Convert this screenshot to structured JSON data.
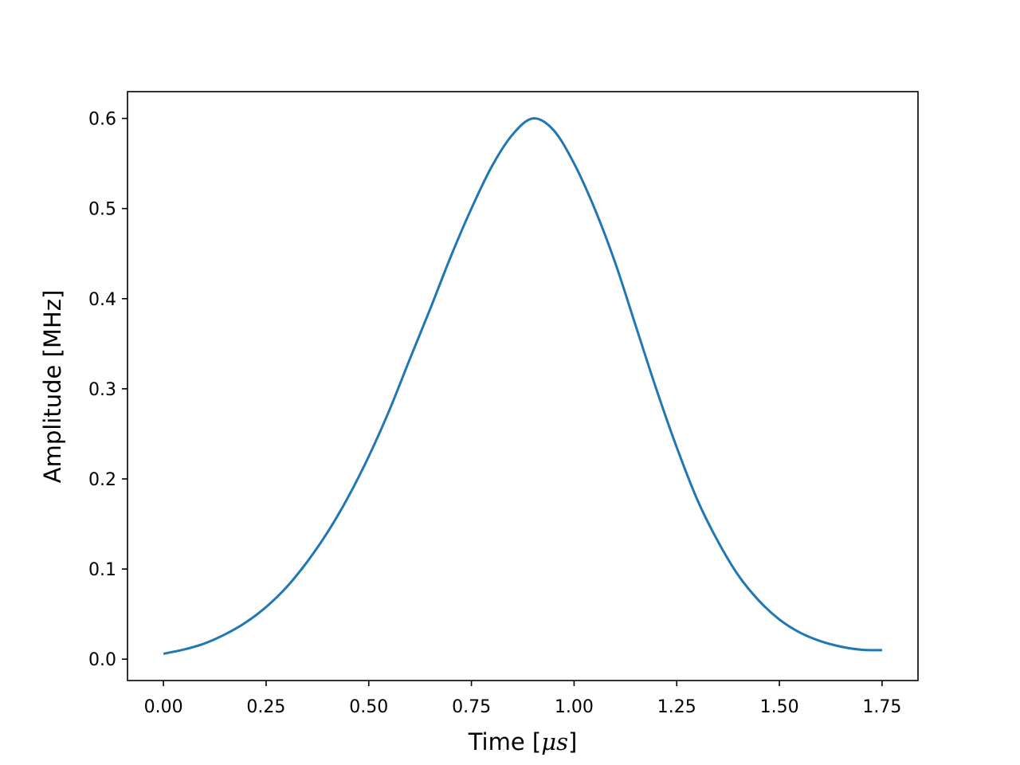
{
  "chart_data": {
    "type": "line",
    "title": "",
    "xlabel_parts": {
      "before": "Time [",
      "math": "μs",
      "after": "]"
    },
    "ylabel": "Amplitude [MHz]",
    "xlim": [
      -0.0875,
      1.8375
    ],
    "ylim": [
      -0.0237,
      0.6297
    ],
    "x_ticks": [
      0.0,
      0.25,
      0.5,
      0.75,
      1.0,
      1.25,
      1.5,
      1.75
    ],
    "x_tick_labels": [
      "0.00",
      "0.25",
      "0.50",
      "0.75",
      "1.00",
      "1.25",
      "1.50",
      "1.75"
    ],
    "y_ticks": [
      0.0,
      0.1,
      0.2,
      0.3,
      0.4,
      0.5,
      0.6
    ],
    "y_tick_labels": [
      "0.0",
      "0.1",
      "0.2",
      "0.3",
      "0.4",
      "0.5",
      "0.6"
    ],
    "grid": false,
    "legend": "none",
    "colors": {
      "line": "#1f77b4",
      "axes": "#000000",
      "background": "#ffffff"
    },
    "series": [
      {
        "x": [
          0.0,
          0.05,
          0.1,
          0.15,
          0.2,
          0.25,
          0.3,
          0.35,
          0.4,
          0.45,
          0.5,
          0.55,
          0.6,
          0.65,
          0.7,
          0.75,
          0.8,
          0.85,
          0.9,
          0.95,
          1.0,
          1.05,
          1.1,
          1.15,
          1.2,
          1.25,
          1.3,
          1.35,
          1.4,
          1.45,
          1.5,
          1.55,
          1.6,
          1.65,
          1.7,
          1.75
        ],
        "y": [
          0.006,
          0.0107,
          0.0174,
          0.0275,
          0.0406,
          0.0579,
          0.08,
          0.108,
          0.141,
          0.18,
          0.225,
          0.276,
          0.333,
          0.389,
          0.447,
          0.5,
          0.547,
          0.582,
          0.6,
          0.587,
          0.55,
          0.5,
          0.44,
          0.37,
          0.3,
          0.235,
          0.177,
          0.131,
          0.093,
          0.065,
          0.044,
          0.0295,
          0.02,
          0.0139,
          0.0105,
          0.01
        ]
      }
    ]
  }
}
